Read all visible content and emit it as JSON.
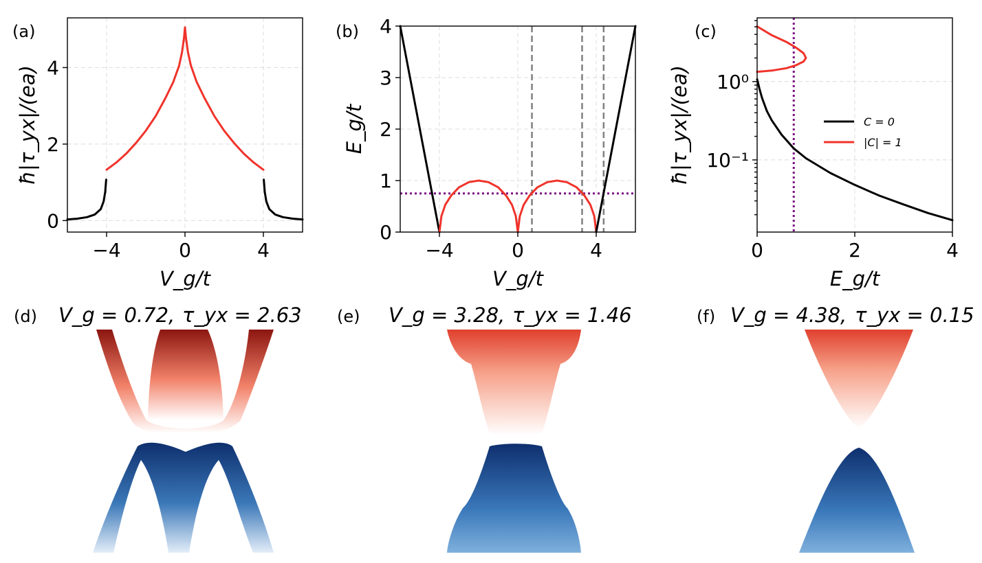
{
  "figure_caption": "",
  "colors": {
    "black": "#000000",
    "red": "#f0332b",
    "gray": "#808080",
    "purple": "#7b1082",
    "grid": "#dcdcdc",
    "valence_dark": "#0e2f6e",
    "valence_light": "#d6e4f3",
    "conduction_dark": "#8c1610",
    "conduction_light": "#ffffff"
  },
  "chart_data": [
    {
      "id": "a",
      "panel_label": "(a)",
      "type": "line",
      "xlabel": "V_g/t",
      "ylabel": "ħ|τ_yx|/(ea)",
      "xlim": [
        -6,
        6
      ],
      "ylim": [
        -0.3,
        5.3
      ],
      "xticks": [
        -4,
        0,
        4
      ],
      "xtick_labels": [
        "−4",
        "0",
        "4"
      ],
      "yticks": [
        0,
        2,
        4
      ],
      "ytick_labels": [
        "0",
        "2",
        "4"
      ],
      "series": [
        {
          "name": "C = 0 (left)",
          "color": "black",
          "x": [
            -6.0,
            -5.5,
            -5.0,
            -4.6,
            -4.3,
            -4.15,
            -4.07,
            -4.02
          ],
          "y": [
            0.03,
            0.05,
            0.09,
            0.16,
            0.3,
            0.5,
            0.75,
            1.07
          ]
        },
        {
          "name": "|C| = 1 (left)",
          "color": "red",
          "x": [
            -4.0,
            -3.5,
            -3.0,
            -2.5,
            -2.0,
            -1.5,
            -1.0,
            -0.6,
            -0.3,
            -0.15,
            -0.05,
            0.0
          ],
          "y": [
            1.33,
            1.52,
            1.75,
            2.03,
            2.35,
            2.73,
            3.2,
            3.62,
            4.05,
            4.4,
            4.78,
            5.05
          ]
        },
        {
          "name": "|C| = 1 (right)",
          "color": "red",
          "x": [
            0.0,
            0.05,
            0.15,
            0.3,
            0.6,
            1.0,
            1.5,
            2.0,
            2.5,
            3.0,
            3.5,
            4.0
          ],
          "y": [
            5.05,
            4.78,
            4.4,
            4.05,
            3.62,
            3.2,
            2.73,
            2.35,
            2.03,
            1.75,
            1.52,
            1.33
          ]
        },
        {
          "name": "C = 0 (right)",
          "color": "black",
          "x": [
            4.02,
            4.07,
            4.15,
            4.3,
            4.6,
            5.0,
            5.5,
            6.0
          ],
          "y": [
            1.07,
            0.75,
            0.5,
            0.3,
            0.16,
            0.09,
            0.05,
            0.03
          ]
        }
      ]
    },
    {
      "id": "b",
      "panel_label": "(b)",
      "type": "line",
      "xlabel": "V_g/t",
      "ylabel": "E_g/t",
      "xlim": [
        -6,
        6
      ],
      "ylim": [
        0,
        4
      ],
      "xticks": [
        -4,
        0,
        4
      ],
      "xtick_labels": [
        "−4",
        "0",
        "4"
      ],
      "yticks": [
        0,
        1,
        2,
        3,
        4
      ],
      "ytick_labels": [
        "0",
        "1",
        "2",
        "3",
        "4"
      ],
      "series": [
        {
          "name": "C = 0 (left)",
          "color": "black",
          "x": [
            -6,
            -4
          ],
          "y": [
            4,
            0
          ]
        },
        {
          "name": "|C| = 1 (left arch)",
          "color": "red",
          "x": [
            -4.0,
            -3.9,
            -3.7,
            -3.4,
            -3.0,
            -2.5,
            -2.0,
            -1.5,
            -1.0,
            -0.6,
            -0.3,
            -0.1,
            0.0
          ],
          "y": [
            0.0,
            0.31,
            0.53,
            0.71,
            0.87,
            0.97,
            1.0,
            0.97,
            0.87,
            0.71,
            0.53,
            0.31,
            0.0
          ]
        },
        {
          "name": "|C| = 1 (right arch)",
          "color": "red",
          "x": [
            0.0,
            0.1,
            0.3,
            0.6,
            1.0,
            1.5,
            2.0,
            2.5,
            3.0,
            3.4,
            3.7,
            3.9,
            4.0
          ],
          "y": [
            0.0,
            0.31,
            0.53,
            0.71,
            0.87,
            0.97,
            1.0,
            0.97,
            0.87,
            0.71,
            0.53,
            0.31,
            0.0
          ]
        },
        {
          "name": "C = 0 (right)",
          "color": "black",
          "x": [
            4,
            6
          ],
          "y": [
            0,
            4
          ]
        }
      ],
      "vlines": [
        0.72,
        3.28,
        4.38
      ],
      "vline_color": "gray",
      "hline": 0.75,
      "hline_color": "purple"
    },
    {
      "id": "c",
      "panel_label": "(c)",
      "type": "line",
      "yscale": "log",
      "xlabel": "E_g/t",
      "ylabel": "ħ|τ_yx|/(ea)",
      "xlim": [
        0,
        4
      ],
      "ylim": [
        0.012,
        6.5
      ],
      "xticks": [
        0,
        2,
        4
      ],
      "xtick_labels": [
        "0",
        "2",
        "4"
      ],
      "yticks": [
        0.1,
        1
      ],
      "ytick_labels": [
        "10⁻¹",
        "10⁰"
      ],
      "legend_position": "center-right",
      "legend": [
        {
          "label": "C = 0",
          "color": "black"
        },
        {
          "label": "|C| = 1",
          "color": "red"
        }
      ],
      "series": [
        {
          "name": "C = 0",
          "color": "black",
          "x": [
            0.0,
            0.05,
            0.1,
            0.2,
            0.3,
            0.5,
            0.75,
            1.0,
            1.5,
            2.0,
            2.5,
            3.0,
            3.5,
            4.0
          ],
          "y": [
            1.07,
            0.8,
            0.62,
            0.42,
            0.32,
            0.21,
            0.14,
            0.105,
            0.068,
            0.048,
            0.035,
            0.027,
            0.021,
            0.017
          ]
        },
        {
          "name": "|C| = 1",
          "color": "red",
          "x": [
            0.0,
            0.3,
            0.6,
            0.8,
            0.95,
            1.0,
            0.95,
            0.8,
            0.6,
            0.3,
            0.0
          ],
          "y": [
            1.33,
            1.38,
            1.48,
            1.62,
            1.8,
            2.0,
            2.3,
            2.7,
            3.2,
            3.9,
            5.05
          ]
        }
      ],
      "vline": 0.75,
      "vline_color": "purple"
    }
  ],
  "band_panels": [
    {
      "id": "d",
      "panel_label": "(d)",
      "vg_text": "V_g = 0.72,",
      "tau_text": "τ_yx = 2.63"
    },
    {
      "id": "e",
      "panel_label": "(e)",
      "vg_text": "V_g = 3.28,",
      "tau_text": "τ_yx = 1.46"
    },
    {
      "id": "f",
      "panel_label": "(f)",
      "vg_text": "V_g = 4.38,",
      "tau_text": "τ_yx = 0.15"
    }
  ]
}
